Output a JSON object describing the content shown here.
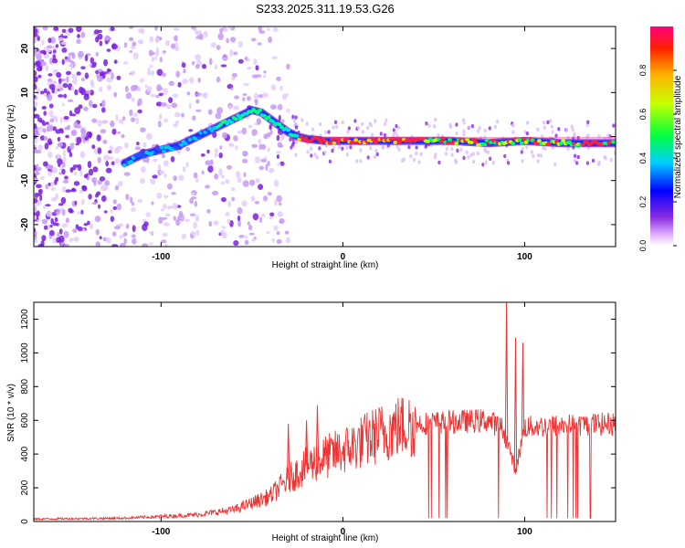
{
  "chart_data": [
    {
      "type": "scatter",
      "title": "S233.2025.311.19.53.G26",
      "xlabel": "Height of straight line (km)",
      "ylabel": "Frequency (Hz)",
      "xlim": [
        -170,
        150
      ],
      "ylim": [
        -25,
        25
      ],
      "xticks": [
        -100,
        0,
        100
      ],
      "yticks": [
        -20,
        -10,
        0,
        10,
        20
      ],
      "colorbar": {
        "label": "Normalized spectral amplitude",
        "range": [
          0,
          1
        ],
        "ticks": [
          "0.0",
          "0.2",
          "0.4",
          "0.6",
          "0.8"
        ],
        "tick_values": [
          0.0,
          0.2,
          0.4,
          0.6,
          0.8
        ]
      },
      "ridge": {
        "x": [
          -120,
          -110,
          -100,
          -90,
          -80,
          -70,
          -60,
          -50,
          -45,
          -40,
          -35,
          -30,
          -25,
          -20,
          -10,
          0,
          20,
          40,
          60,
          80,
          100,
          120,
          150
        ],
        "frequency": [
          -6,
          -4,
          -3,
          -2,
          0,
          2,
          4,
          6,
          5.5,
          4,
          2.5,
          1,
          0,
          -0.5,
          -1,
          -1,
          -1,
          -1,
          -1,
          -1.5,
          -1,
          -1.5,
          -1.5
        ]
      }
    },
    {
      "type": "line",
      "xlabel": "Height of straight line (km)",
      "ylabel": "SNR (10 * v/v)",
      "xlim": [
        -170,
        150
      ],
      "ylim": [
        0,
        1300
      ],
      "xticks": [
        -100,
        0,
        100
      ],
      "yticks": [
        0,
        200,
        400,
        600,
        800,
        1000,
        1200
      ],
      "color": "#ee3333",
      "trend": {
        "x": [
          -170,
          -120,
          -80,
          -60,
          -40,
          -30,
          -20,
          -10,
          0,
          10,
          20,
          30,
          40,
          60,
          80,
          88,
          92,
          95,
          100,
          120,
          150
        ],
        "y": [
          15,
          20,
          40,
          70,
          150,
          250,
          330,
          380,
          420,
          470,
          520,
          560,
          580,
          590,
          600,
          550,
          420,
          300,
          560,
          570,
          580
        ]
      },
      "spikes": [
        {
          "x": -30,
          "y": 580
        },
        {
          "x": -20,
          "y": 600
        },
        {
          "x": -14,
          "y": 690
        },
        {
          "x": 90,
          "y": 1300
        },
        {
          "x": 95,
          "y": 1090
        },
        {
          "x": 99,
          "y": 1060
        }
      ]
    }
  ]
}
